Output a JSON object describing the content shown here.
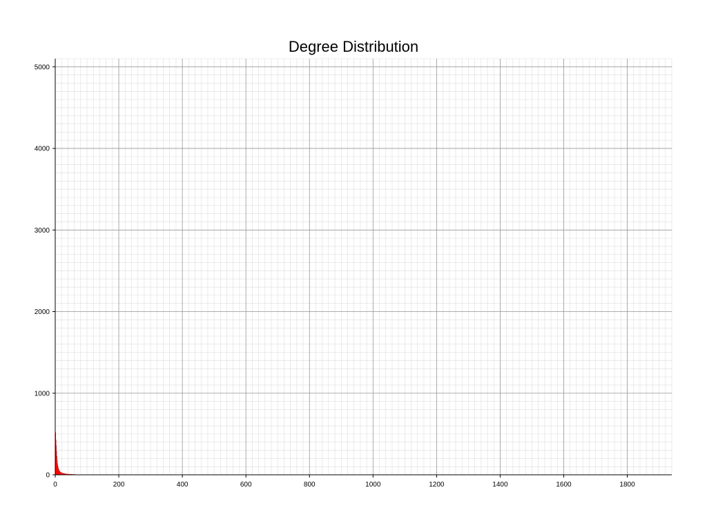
{
  "chart_data": {
    "type": "bar",
    "title": "Degree Distribution",
    "xlabel": "",
    "ylabel": "",
    "xlim": [
      0,
      1940
    ],
    "ylim": [
      0,
      5100
    ],
    "grid": true,
    "minor_grid": true,
    "bar_color": "#ff0000",
    "x_ticks": [
      0,
      200,
      400,
      600,
      800,
      1000,
      1200,
      1400,
      1600,
      1800
    ],
    "y_ticks": [
      0,
      1000,
      2000,
      3000,
      4000,
      5000
    ],
    "x": [
      1,
      2,
      3,
      4,
      5,
      6,
      7,
      8,
      9,
      10,
      11,
      12,
      13,
      14,
      15,
      16,
      18,
      20,
      22,
      25,
      28,
      32,
      36,
      40,
      45,
      50,
      55,
      60,
      65
    ],
    "values": [
      520,
      430,
      360,
      290,
      230,
      180,
      140,
      115,
      95,
      80,
      68,
      58,
      50,
      44,
      40,
      36,
      32,
      28,
      24,
      20,
      17,
      14,
      12,
      10,
      9,
      8,
      7,
      6,
      5
    ]
  }
}
